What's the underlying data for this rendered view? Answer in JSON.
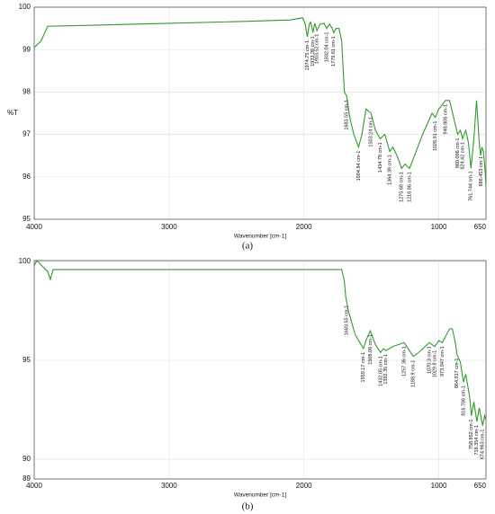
{
  "chart_data": [
    {
      "type": "line",
      "caption": "(a)",
      "x_label": "Wavenumber [cm-1]",
      "y_label": "%T",
      "xlim": [
        4000,
        650
      ],
      "xticks": [
        4000,
        3000,
        2000,
        1000,
        650
      ],
      "ylim": [
        95,
        100
      ],
      "yticks": [
        95,
        96,
        97,
        98,
        99,
        100
      ],
      "grid": true,
      "series": [
        {
          "color": "#2f9a2a",
          "x": [
            4000,
            3950,
            3900,
            3500,
            3000,
            2500,
            2100,
            2010,
            1990,
            1975,
            1960,
            1950,
            1933,
            1920,
            1903,
            1880,
            1850,
            1832,
            1810,
            1790,
            1780,
            1760,
            1740,
            1720,
            1700,
            1683,
            1660,
            1630,
            1595,
            1570,
            1540,
            1520,
            1503,
            1470,
            1435,
            1400,
            1364,
            1340,
            1310,
            1276,
            1250,
            1217,
            1180,
            1120,
            1050,
            1026,
            1000,
            950,
            920,
            890,
            860,
            840,
            824,
            800,
            780,
            761,
            740,
            720,
            700,
            690,
            680,
            670,
            660,
            650
          ],
          "values": [
            99.05,
            99.2,
            99.55,
            99.58,
            99.62,
            99.66,
            99.7,
            99.75,
            99.6,
            99.3,
            99.6,
            99.65,
            99.4,
            99.62,
            99.45,
            99.6,
            99.62,
            99.5,
            99.6,
            99.5,
            99.4,
            99.5,
            99.5,
            99.2,
            98.0,
            97.9,
            97.4,
            97.0,
            96.7,
            97.0,
            97.6,
            97.55,
            97.5,
            97.1,
            96.9,
            97.0,
            96.6,
            96.7,
            96.5,
            96.2,
            96.3,
            96.2,
            96.5,
            97.0,
            97.5,
            97.4,
            97.6,
            97.8,
            97.8,
            97.4,
            97.0,
            97.1,
            96.9,
            97.1,
            96.8,
            96.2,
            96.9,
            97.8,
            96.8,
            96.5,
            96.7,
            96.6,
            96.3,
            95.8
          ]
        }
      ],
      "annotations": [
        {
          "text": "1974.75 cm-1",
          "x": 1974.75
        },
        {
          "text": "1933.26 cm-1",
          "x": 1933.26
        },
        {
          "text": "1903.52 cm-1",
          "x": 1903.52
        },
        {
          "text": "1832.04 cm-1",
          "x": 1832.04
        },
        {
          "text": "1779.81 cm-1",
          "x": 1779.81
        },
        {
          "text": "1683.55 cm-1",
          "x": 1683.55
        },
        {
          "text": "1594.84 cm-1",
          "x": 1594.84
        },
        {
          "text": "1503.24 cm-1",
          "x": 1503.24
        },
        {
          "text": "1434.78 cm-1",
          "x": 1434.78
        },
        {
          "text": "1364.39 cm-1",
          "x": 1364.39
        },
        {
          "text": "1275.68 cm-1",
          "x": 1275.68
        },
        {
          "text": "1216.86 cm-1",
          "x": 1216.86
        },
        {
          "text": "1026.91 cm-1",
          "x": 1026.91
        },
        {
          "text": "948.806 cm-1",
          "x": 948.806
        },
        {
          "text": "860.096 cm-1",
          "x": 860.096
        },
        {
          "text": "824.42 cm-1",
          "x": 824.42
        },
        {
          "text": "761.744 cm-1",
          "x": 761.744
        },
        {
          "text": "686.453 cm-1",
          "x": 686.453
        }
      ]
    },
    {
      "type": "line",
      "caption": "(b)",
      "x_label": "Wavenumber [cm-1]",
      "xlim": [
        4000,
        650
      ],
      "xticks": [
        4000,
        3000,
        2000,
        1000,
        650
      ],
      "ylim": [
        89,
        100.05
      ],
      "yticks": [
        89,
        90,
        95,
        100
      ],
      "grid": true,
      "series": [
        {
          "color": "#2f9a2a",
          "x": [
            4000,
            3980,
            3930,
            3900,
            3880,
            3860,
            3500,
            3000,
            2500,
            2000,
            1800,
            1720,
            1700,
            1690,
            1670,
            1620,
            1559,
            1540,
            1508,
            1470,
            1432,
            1410,
            1392,
            1340,
            1257,
            1189,
            1150,
            1070,
            1030,
            1000,
            974,
            920,
            900,
            880,
            865,
            840,
            817,
            800,
            770,
            759,
            740,
            718,
            700,
            675,
            660,
            650
          ],
          "values": [
            99.8,
            100.05,
            99.7,
            99.5,
            99.1,
            99.6,
            99.6,
            99.6,
            99.6,
            99.6,
            99.6,
            99.6,
            99.0,
            98.2,
            97.5,
            96.3,
            95.6,
            96.0,
            96.5,
            95.8,
            95.4,
            95.6,
            95.5,
            95.7,
            95.9,
            95.2,
            95.4,
            95.9,
            95.7,
            96.0,
            95.9,
            96.6,
            96.6,
            96.0,
            95.3,
            94.9,
            93.9,
            94.3,
            93.1,
            92.2,
            92.9,
            91.9,
            92.6,
            91.7,
            92.2,
            92.0
          ]
        }
      ],
      "annotations": [
        {
          "text": "1683.55 cm-1",
          "x": 1683.55
        },
        {
          "text": "1559.17 cm-1",
          "x": 1559.17
        },
        {
          "text": "1508.06 cm-1",
          "x": 1508.06
        },
        {
          "text": "1432.05 cm-1",
          "x": 1432.05
        },
        {
          "text": "1392.35 cm-1",
          "x": 1392.35
        },
        {
          "text": "1257.36 cm-1",
          "x": 1257.36
        },
        {
          "text": "1188.9 cm-1",
          "x": 1188.9
        },
        {
          "text": "1070.3 cm-1",
          "x": 1070.3
        },
        {
          "text": "1029.8 cm-1",
          "x": 1029.8
        },
        {
          "text": "973.947 cm-1",
          "x": 973.947
        },
        {
          "text": "864.917 cm-1",
          "x": 864.917
        },
        {
          "text": "816.786 cm-1",
          "x": 816.786
        },
        {
          "text": "758.852 cm-1",
          "x": 758.852
        },
        {
          "text": "718.354 cm-1",
          "x": 718.354
        },
        {
          "text": "674.963 cm-1",
          "x": 674.963
        }
      ]
    }
  ]
}
